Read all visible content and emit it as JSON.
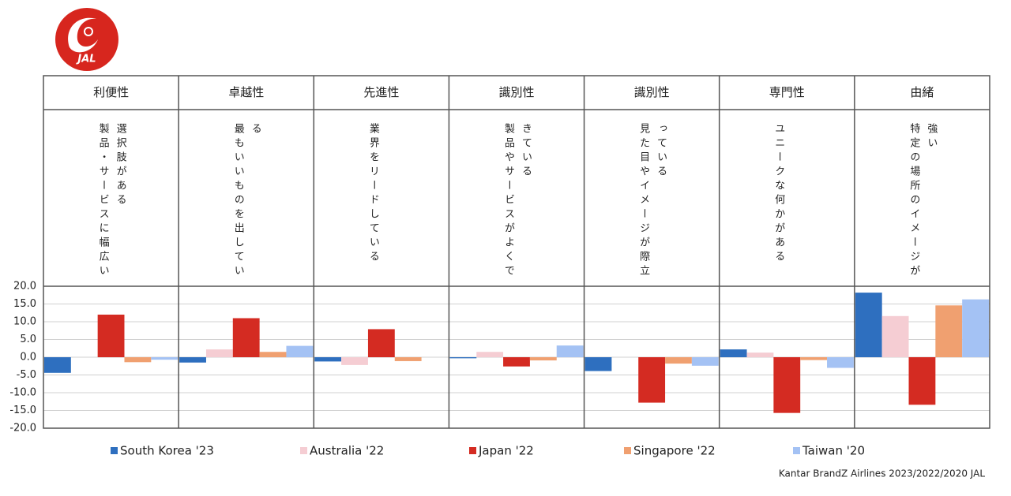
{
  "chart_data": {
    "type": "bar",
    "logo_text": "JAL",
    "categories": [
      "利便性",
      "卓越性",
      "先進性",
      "識別性",
      "識別性",
      "専門性",
      "由緒"
    ],
    "descriptions": [
      "製品・サービスに幅広い選択肢がある",
      "最もいいものを出している",
      "業界をリードしている",
      "製品やサービスがよくできている",
      "見た目やイメージが際立っている",
      "ユニークな何かがある",
      "特定の場所のイメージが強い"
    ],
    "series": [
      {
        "name": "South Korea '23",
        "color": "#2e6fbf",
        "values": [
          -4.4,
          -1.5,
          -1.2,
          -0.3,
          -3.9,
          2.2,
          18.2
        ]
      },
      {
        "name": "Australia '22",
        "color": "#f5cdd3",
        "values": [
          0,
          2.2,
          -2.2,
          1.5,
          0,
          1.3,
          11.6
        ]
      },
      {
        "name": "Japan '22",
        "color": "#d42b22",
        "values": [
          12.0,
          11.0,
          7.9,
          -2.6,
          -12.8,
          -15.7,
          -13.4
        ]
      },
      {
        "name": "Singapore '22",
        "color": "#f0a070",
        "values": [
          -1.4,
          1.5,
          -1.1,
          -0.9,
          -1.8,
          -0.8,
          14.6
        ]
      },
      {
        "name": "Taiwan '20",
        "color": "#a4c2f4",
        "values": [
          -0.7,
          3.2,
          0,
          3.3,
          -2.4,
          -3.0,
          16.3
        ]
      }
    ],
    "ylim": [
      -20,
      20
    ],
    "yticks": [
      {
        "value": -20,
        "label": "-20.0"
      },
      {
        "value": -15,
        "label": "-15.0"
      },
      {
        "value": -10,
        "label": "-10.0"
      },
      {
        "value": -5,
        "label": "-5.0"
      },
      {
        "value": 0,
        "label": "0.0"
      },
      {
        "value": 5,
        "label": "5.0"
      },
      {
        "value": 10,
        "label": "10.0"
      },
      {
        "value": 15,
        "label": "15.0"
      },
      {
        "value": 20,
        "label": "20.0"
      }
    ],
    "grid": true,
    "legend": "bottom",
    "source": "Kantar BrandZ  Airlines 2023/2022/2020 JAL"
  }
}
